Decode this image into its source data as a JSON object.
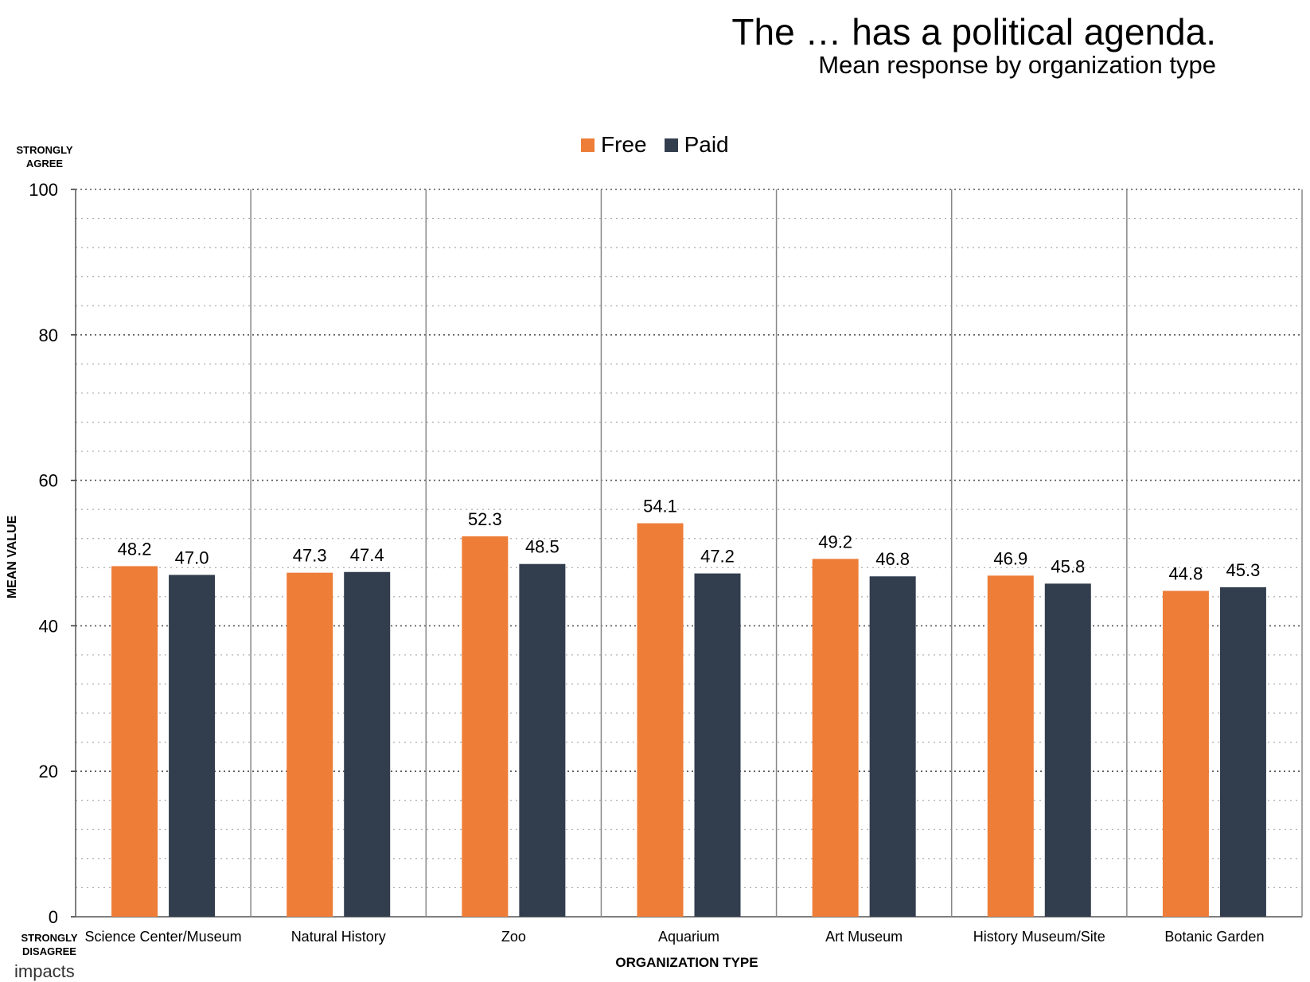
{
  "header": {
    "title": "The … has a political agenda.",
    "subtitle": "Mean response by organization type"
  },
  "axis_labels": {
    "y_top": "STRONGLY AGREE",
    "y_bottom": "STRONGLY DISAGREE",
    "y_title": "MEAN VALUE",
    "x_title": "ORGANIZATION TYPE"
  },
  "logo_text": "impacts",
  "colors": {
    "free": "#ED7D37",
    "paid": "#323E4E",
    "grid_major": "#555555",
    "grid_minor": "#aaaaaa",
    "separator": "#888888"
  },
  "chart_data": {
    "type": "bar",
    "title": "The … has a political agenda.",
    "subtitle": "Mean response by organization type",
    "xlabel": "ORGANIZATION TYPE",
    "ylabel": "MEAN VALUE",
    "ylim": [
      0,
      100
    ],
    "yticks": [
      0,
      20,
      40,
      60,
      80,
      100
    ],
    "grid": true,
    "legend_position": "top-center",
    "categories": [
      "Science Center/Museum",
      "Natural History",
      "Zoo",
      "Aquarium",
      "Art Museum",
      "History Museum/Site",
      "Botanic Garden"
    ],
    "series": [
      {
        "name": "Free",
        "color": "#ED7D37",
        "values": [
          48.2,
          47.3,
          52.3,
          54.1,
          49.2,
          46.9,
          44.8
        ]
      },
      {
        "name": "Paid",
        "color": "#323E4E",
        "values": [
          47.0,
          47.4,
          48.5,
          47.2,
          46.8,
          45.8,
          45.3
        ]
      }
    ]
  }
}
